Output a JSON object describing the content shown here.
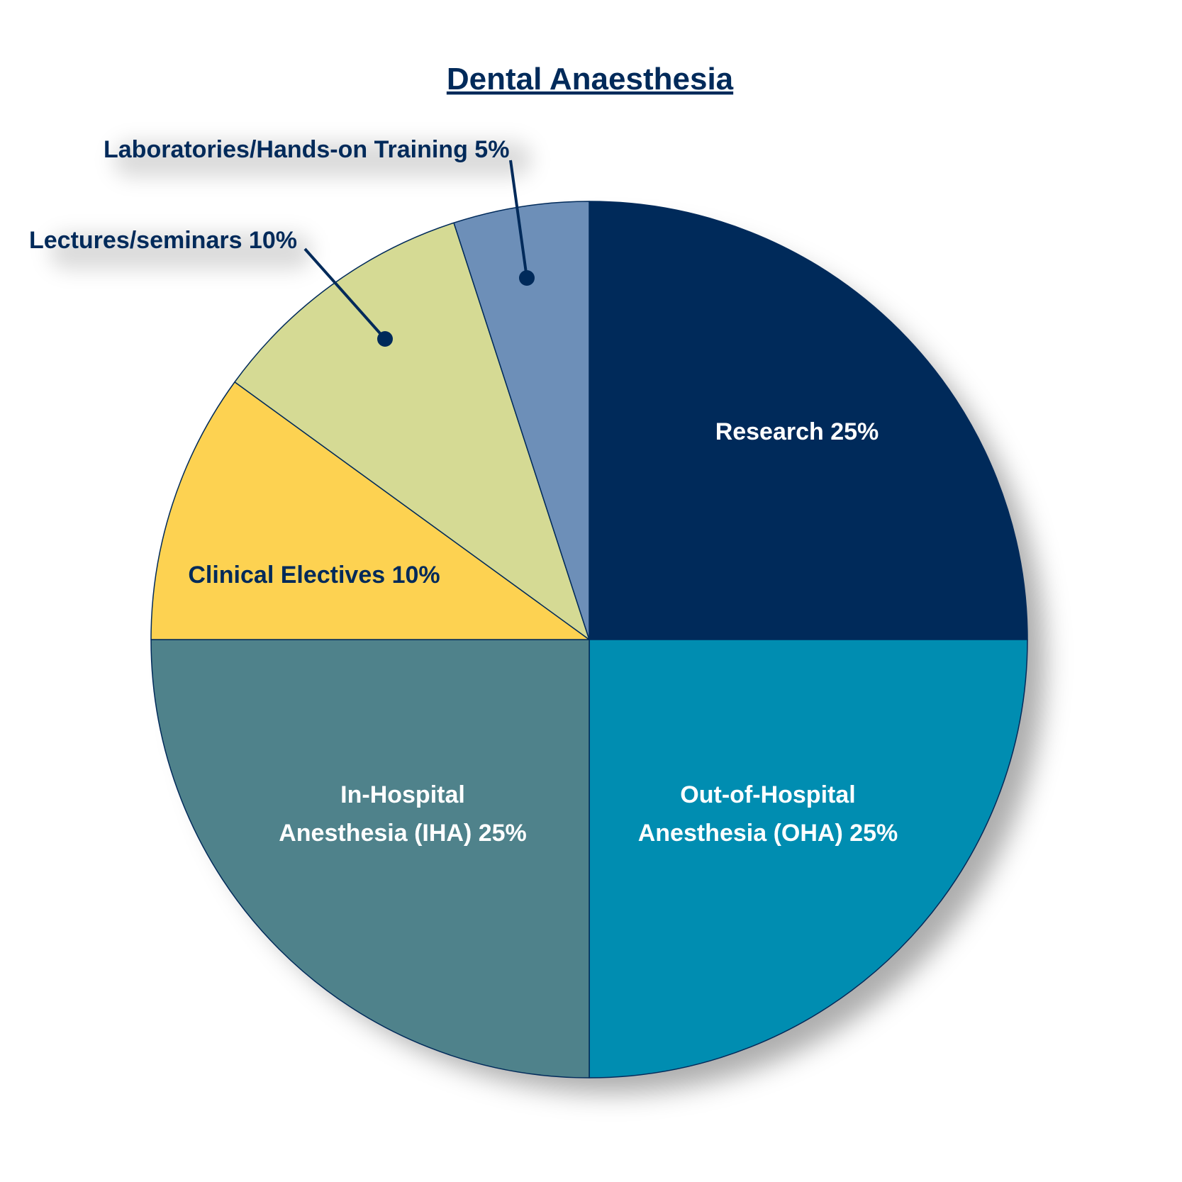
{
  "chart_data": {
    "type": "pie",
    "title": "Dental Anaesthesia",
    "start_angle": "12 o'clock",
    "direction": "clockwise",
    "slices": [
      {
        "key": "research",
        "label_lines": [
          "Research 25%"
        ],
        "value": 25,
        "color": "#002a5a",
        "label_color": "#ffffff",
        "label_position": "inside"
      },
      {
        "key": "out-of-hospital",
        "label_lines": [
          "Out-of-Hospital",
          "Anesthesia (OHA) 25%"
        ],
        "value": 25,
        "color": "#008db1",
        "label_color": "#ffffff",
        "label_position": "inside"
      },
      {
        "key": "in-hospital",
        "label_lines": [
          "In-Hospital",
          "Anesthesia (IHA) 25%"
        ],
        "value": 25,
        "color": "#4f828b",
        "label_color": "#ffffff",
        "label_position": "inside"
      },
      {
        "key": "clinical-electives",
        "label_lines": [
          "Clinical Electives 10%"
        ],
        "value": 10,
        "color": "#fdd251",
        "label_color": "#002a5a",
        "label_position": "inside"
      },
      {
        "key": "lectures",
        "label_lines": [
          "Lectures/seminars 10%"
        ],
        "value": 10,
        "color": "#d5da94",
        "label_color": "#002a5a",
        "label_position": "outside-callout"
      },
      {
        "key": "laboratories",
        "label_lines": [
          "Laboratories/Hands-on Training 5%"
        ],
        "value": 5,
        "color": "#6d8fb8",
        "label_color": "#002a5a",
        "label_position": "outside-callout"
      }
    ],
    "title_color": "#002a5a",
    "outline_color": "#002a5a",
    "shadow": true
  }
}
